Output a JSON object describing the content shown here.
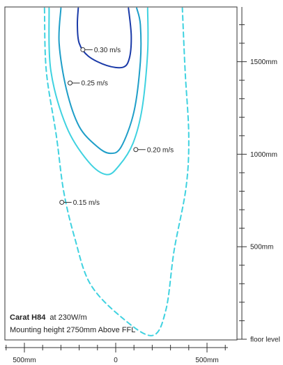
{
  "chart_data": {
    "type": "line",
    "title": "",
    "xlabel": "",
    "ylabel": "",
    "xlim": [
      -590,
      590
    ],
    "ylim": [
      0,
      1790
    ],
    "x_ticks": [
      {
        "value": -500,
        "label": "500mm"
      },
      {
        "value": 0,
        "label": "0"
      },
      {
        "value": 500,
        "label": "500mm"
      }
    ],
    "y_ticks": [
      {
        "value": 0,
        "label": "floor level"
      },
      {
        "value": 500,
        "label": "500mm"
      },
      {
        "value": 1000,
        "label": "1000mm"
      },
      {
        "value": 1500,
        "label": "1500mm"
      }
    ],
    "fixture": {
      "name": "Carat H84",
      "power": "at 230W/m",
      "mounting": "Mounting height 2750mm Above FFL"
    },
    "series": [
      {
        "name": "0.30 m/s",
        "color": "#1a3aa8",
        "dashed": false,
        "marker": {
          "x": -180,
          "y": 1565
        },
        "points": [
          [
            -205,
            1790
          ],
          [
            -210,
            1700
          ],
          [
            -200,
            1600
          ],
          [
            -150,
            1530
          ],
          [
            -50,
            1480
          ],
          [
            40,
            1470
          ],
          [
            75,
            1520
          ],
          [
            85,
            1640
          ],
          [
            70,
            1790
          ]
        ]
      },
      {
        "name": "0.25 m/s",
        "color": "#1e9ec8",
        "dashed": false,
        "marker": {
          "x": -250,
          "y": 1385
        },
        "points": [
          [
            -300,
            1790
          ],
          [
            -310,
            1600
          ],
          [
            -270,
            1350
          ],
          [
            -200,
            1150
          ],
          [
            -100,
            1040
          ],
          [
            -30,
            1005
          ],
          [
            30,
            1040
          ],
          [
            100,
            1230
          ],
          [
            135,
            1500
          ],
          [
            135,
            1700
          ],
          [
            115,
            1790
          ]
        ]
      },
      {
        "name": "0.20 m/s",
        "color": "#3fd2e0",
        "dashed": false,
        "marker": {
          "x": 110,
          "y": 1025
        },
        "points": [
          [
            -365,
            1790
          ],
          [
            -355,
            1450
          ],
          [
            -270,
            1150
          ],
          [
            -150,
            960
          ],
          [
            -50,
            890
          ],
          [
            20,
            940
          ],
          [
            95,
            1060
          ],
          [
            145,
            1250
          ],
          [
            175,
            1550
          ],
          [
            175,
            1790
          ]
        ]
      },
      {
        "name": "0.15 m/s",
        "color": "#3fd2e0",
        "dashed": true,
        "marker": {
          "x": -295,
          "y": 740
        },
        "points": [
          [
            -390,
            1790
          ],
          [
            -380,
            1450
          ],
          [
            -325,
            1100
          ],
          [
            -285,
            800
          ],
          [
            -225,
            550
          ],
          [
            -140,
            300
          ],
          [
            30,
            120
          ],
          [
            200,
            20
          ],
          [
            275,
            160
          ],
          [
            320,
            480
          ],
          [
            385,
            820
          ],
          [
            400,
            1100
          ],
          [
            380,
            1450
          ],
          [
            365,
            1790
          ]
        ]
      }
    ]
  }
}
